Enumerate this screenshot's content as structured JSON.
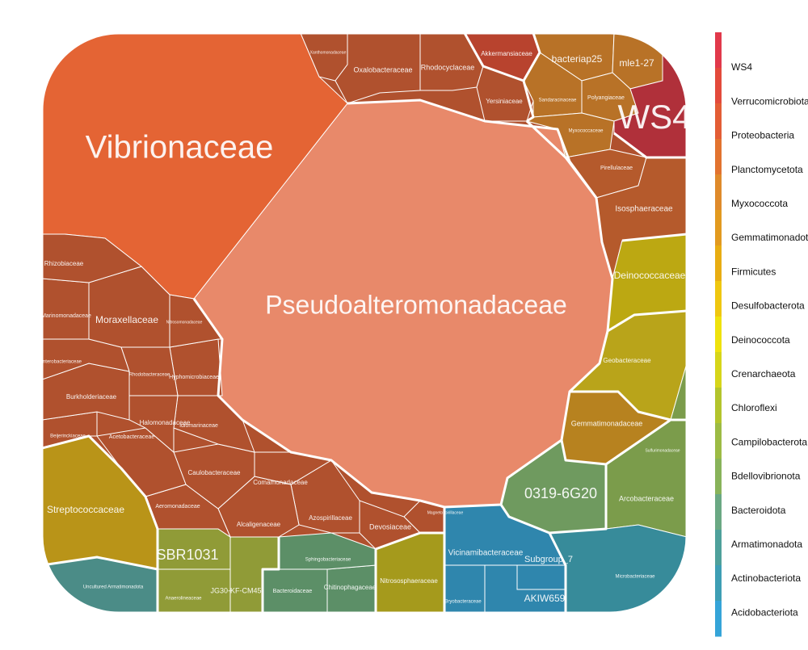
{
  "chart_data": {
    "type": "voronoi-treemap",
    "title": "",
    "legend": {
      "placement": "right",
      "entries": [
        "WS4",
        "Verrucomicrobiota",
        "Proteobacteria",
        "Planctomycetota",
        "Myxococcota",
        "Gemmatimonadota",
        "Firmicutes",
        "Desulfobacterota",
        "Deinococcota",
        "Crenarchaeota",
        "Chloroflexi",
        "Campilobacterota",
        "Bdellovibrionota",
        "Bacteroidota",
        "Armatimonadota",
        "Actinobacteriota",
        "Acidobacteriota"
      ],
      "colors": [
        "#e1394b",
        "#e34a3b",
        "#e35d35",
        "#e2732f",
        "#df8a2b",
        "#e29a1f",
        "#e8ad12",
        "#efc710",
        "#efe20d",
        "#d6d51a",
        "#b3c42c",
        "#9cbb44",
        "#88b35a",
        "#6aa883",
        "#4ea09b",
        "#3e9eb4",
        "#35a4d8"
      ]
    },
    "cells": [
      {
        "name": "Pseudoalteromonadaceae",
        "phylum": "Proteobacteria",
        "fill": "#e8896a"
      },
      {
        "name": "Vibrionaceae",
        "phylum": "Proteobacteria",
        "fill": "#e46434"
      },
      {
        "name": "Xanthomonadaceae",
        "phylum": "Proteobacteria",
        "fill": "#b0512e"
      },
      {
        "name": "Oxalobacteraceae",
        "phylum": "Proteobacteria",
        "fill": "#b0512e"
      },
      {
        "name": "Rhodocyclaceae",
        "phylum": "Proteobacteria",
        "fill": "#b0512e"
      },
      {
        "name": "Yersiniaceae",
        "phylum": "Proteobacteria",
        "fill": "#b0512e"
      },
      {
        "name": "Rhizobiaceae",
        "phylum": "Proteobacteria",
        "fill": "#b0512e"
      },
      {
        "name": "Marinomonadaceae",
        "phylum": "Proteobacteria",
        "fill": "#b0512e"
      },
      {
        "name": "Moraxellaceae",
        "phylum": "Proteobacteria",
        "fill": "#b0512e"
      },
      {
        "name": "Nitrosomonadaceae",
        "phylum": "Proteobacteria",
        "fill": "#b0512e"
      },
      {
        "name": "Enterobacteriaceae",
        "phylum": "Proteobacteria",
        "fill": "#b0512e"
      },
      {
        "name": "Rhodobacteraceae",
        "phylum": "Proteobacteria",
        "fill": "#b0512e"
      },
      {
        "name": "Hyphomicrobiaceae",
        "phylum": "Proteobacteria",
        "fill": "#b0512e"
      },
      {
        "name": "Burkholderiaceae",
        "phylum": "Proteobacteria",
        "fill": "#b0512e"
      },
      {
        "name": "Halomonadaceae",
        "phylum": "Proteobacteria",
        "fill": "#b0512e"
      },
      {
        "name": "Idiomarinaceae",
        "phylum": "Proteobacteria",
        "fill": "#b0512e"
      },
      {
        "name": "Beijerinckiaceae",
        "phylum": "Proteobacteria",
        "fill": "#b0512e"
      },
      {
        "name": "Acetobacteraceae",
        "phylum": "Proteobacteria",
        "fill": "#b0512e"
      },
      {
        "name": "Caulobacteraceae",
        "phylum": "Proteobacteria",
        "fill": "#b0512e"
      },
      {
        "name": "Comamonadaceae",
        "phylum": "Proteobacteria",
        "fill": "#b0512e"
      },
      {
        "name": "Aeromonadaceae",
        "phylum": "Proteobacteria",
        "fill": "#b0512e"
      },
      {
        "name": "Alcaligenaceae",
        "phylum": "Proteobacteria",
        "fill": "#b0512e"
      },
      {
        "name": "Azospirillaceae",
        "phylum": "Proteobacteria",
        "fill": "#b0512e"
      },
      {
        "name": "Devosiaceae",
        "phylum": "Proteobacteria",
        "fill": "#b0512e"
      },
      {
        "name": "Magnetospirillaceae",
        "phylum": "Proteobacteria",
        "fill": "#b0512e"
      },
      {
        "name": "Akkermansiaceae",
        "phylum": "Verrucomicrobiota",
        "fill": "#b8432e"
      },
      {
        "name": "WS4",
        "phylum": "WS4",
        "fill": "#b0303a"
      },
      {
        "name": "bacteriap25",
        "phylum": "Myxococcota",
        "fill": "#b87227"
      },
      {
        "name": "mle1-27",
        "phylum": "Myxococcota",
        "fill": "#b87227"
      },
      {
        "name": "Sandaracinaceae",
        "phylum": "Myxococcota",
        "fill": "#b87227"
      },
      {
        "name": "Polyangiaceae",
        "phylum": "Myxococcota",
        "fill": "#b87227"
      },
      {
        "name": "Myxococcaceae",
        "phylum": "Myxococcota",
        "fill": "#b87227"
      },
      {
        "name": "Pirellulaceae",
        "phylum": "Planctomycetota",
        "fill": "#b55a2c"
      },
      {
        "name": "Isosphaeraceae",
        "phylum": "Planctomycetota",
        "fill": "#b55a2c"
      },
      {
        "name": "Deinococcaceae",
        "phylum": "Deinococcota",
        "fill": "#bca812"
      },
      {
        "name": "Geobacteraceae",
        "phylum": "Desulfobacterota",
        "fill": "#b9a41a"
      },
      {
        "name": "Gemmatimonadaceae",
        "phylum": "Gemmatimonadota",
        "fill": "#b7821f"
      },
      {
        "name": "Streptococcaceae",
        "phylum": "Firmicutes",
        "fill": "#b99418"
      },
      {
        "name": "0319-6G20",
        "phylum": "Bdellovibrionota",
        "fill": "#6f9a5f"
      },
      {
        "name": "Arcobacteraceae",
        "phylum": "Campilobacterota",
        "fill": "#7b9c4b"
      },
      {
        "name": "Sulfurimonadaceae",
        "phylum": "Campilobacterota",
        "fill": "#7b9c4b"
      },
      {
        "name": "SBR1031",
        "phylum": "Chloroflexi",
        "fill": "#909b37"
      },
      {
        "name": "JG30-KF-CM45",
        "phylum": "Chloroflexi",
        "fill": "#909b37"
      },
      {
        "name": "Anaerolineaceae",
        "phylum": "Chloroflexi",
        "fill": "#909b37"
      },
      {
        "name": "Nitrososphaeraceae",
        "phylum": "Crenarchaeota",
        "fill": "#a59a1c"
      },
      {
        "name": "Sphingobacteriaceae",
        "phylum": "Bacteroidota",
        "fill": "#5c8f67"
      },
      {
        "name": "Bacteroidaceae",
        "phylum": "Bacteroidota",
        "fill": "#5c8f67"
      },
      {
        "name": "Chitinophagaceae",
        "phylum": "Bacteroidota",
        "fill": "#5c8f67"
      },
      {
        "name": "Uncultured Armatimonadota",
        "phylum": "Armatimonadota",
        "fill": "#4b8c87"
      },
      {
        "name": "Vicinamibacteraceae",
        "phylum": "Acidobacteriota",
        "fill": "#2f86ad"
      },
      {
        "name": "Subgroup_7",
        "phylum": "Acidobacteriota",
        "fill": "#2f86ad"
      },
      {
        "name": "AKIW659",
        "phylum": "Acidobacteriota",
        "fill": "#2f86ad"
      },
      {
        "name": "Bryobacteraceae",
        "phylum": "Acidobacteriota",
        "fill": "#2f86ad"
      },
      {
        "name": "Microbacteriaceae",
        "phylum": "Actinobacteriota",
        "fill": "#378b9a"
      }
    ],
    "sizes": {
      "Pseudoalteromonadaceae": 140000,
      "Vibrionaceae": 45000,
      "Streptococcaceae": 12000,
      "Vicinamibacteraceae": 7500,
      "0319-6G20": 9000,
      "Isosphaeraceae": 6500,
      "WS4": 8500,
      "Deinococcaceae": 7000,
      "SBR1031": 6000
    }
  }
}
